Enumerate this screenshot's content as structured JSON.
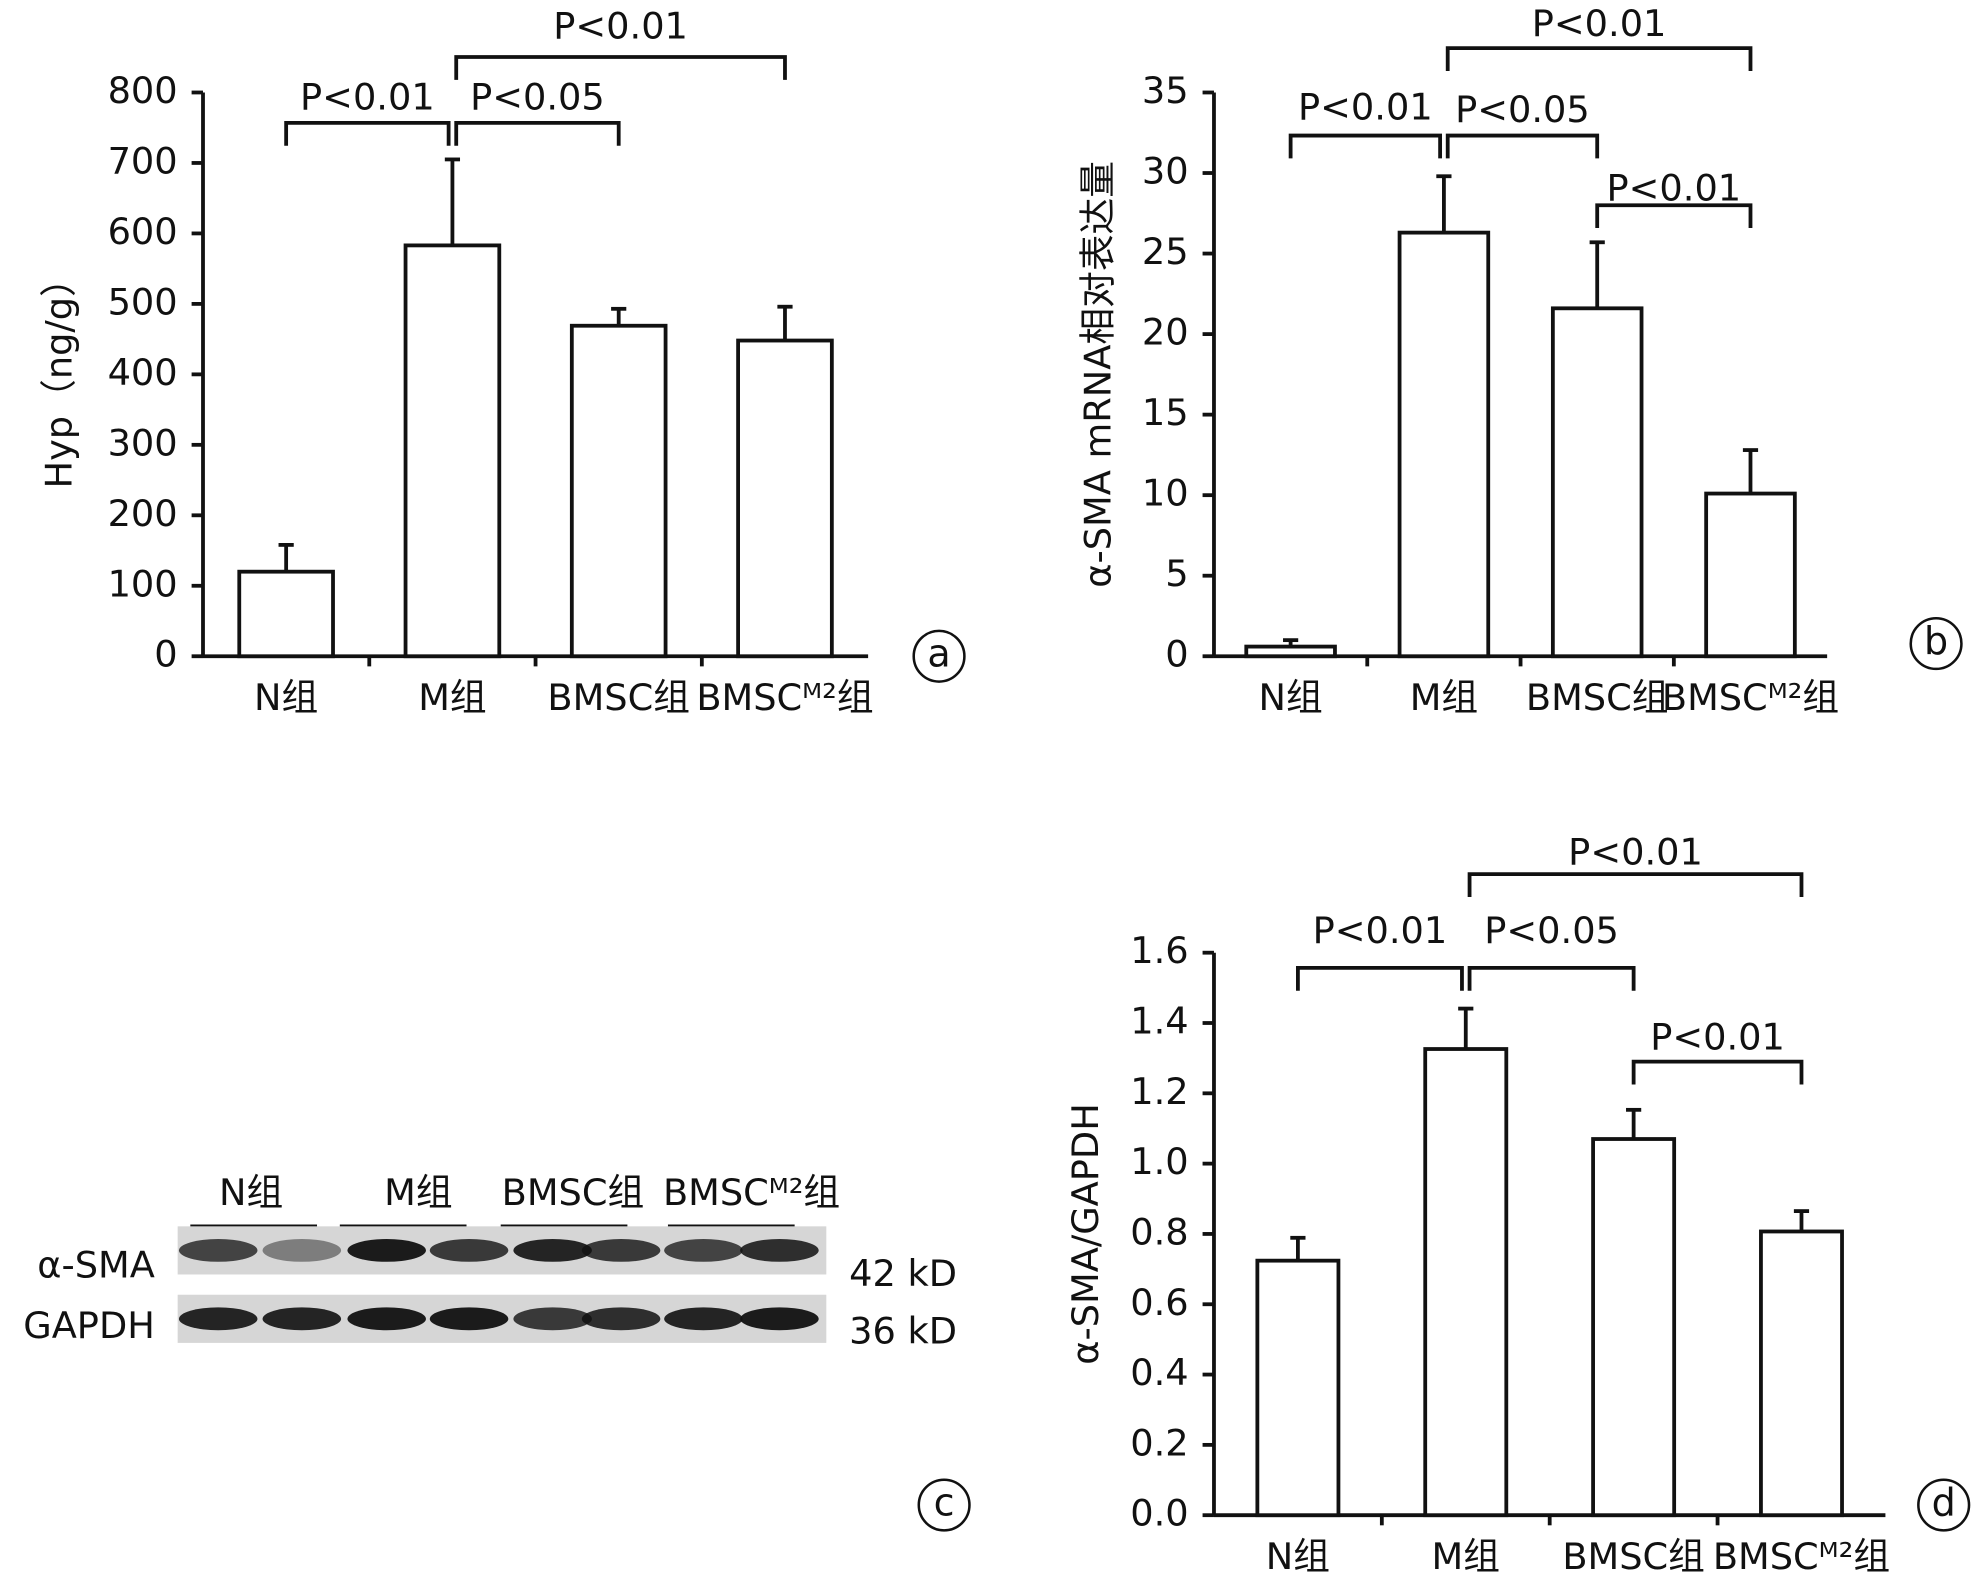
{
  "chart_data": [
    {
      "type": "bar",
      "panel": "a",
      "ylabel": "Hyp（ng/g）",
      "categories": [
        "N组",
        "M组",
        "BMSC组",
        "BMSCᴹ²组"
      ],
      "values": [
        120,
        583,
        469,
        448
      ],
      "errors": [
        38,
        122,
        24,
        48
      ],
      "ylim": [
        0,
        800
      ],
      "yticks": [
        0,
        100,
        200,
        300,
        400,
        500,
        600,
        700,
        800
      ],
      "comparisons": [
        "P<0.01",
        "P<0.05",
        "P<0.01"
      ]
    },
    {
      "type": "bar",
      "panel": "b",
      "ylabel": "α-SMA mRNA相对表达量",
      "categories": [
        "N组",
        "M组",
        "BMSC组",
        "BMSCᴹ²组"
      ],
      "values": [
        0.6,
        26.3,
        21.6,
        10.1
      ],
      "errors": [
        0.4,
        3.5,
        4.1,
        2.7
      ],
      "ylim": [
        0,
        35
      ],
      "yticks": [
        0,
        5,
        10,
        15,
        20,
        25,
        30,
        35
      ],
      "comparisons": [
        "P<0.01",
        "P<0.05",
        "P<0.01",
        "P<0.01"
      ]
    },
    {
      "type": "blot",
      "panel": "c",
      "lanes": [
        "N组",
        "M组",
        "BMSC组",
        "BMSCᴹ²组"
      ],
      "rows": [
        "α-SMA",
        "GAPDH"
      ],
      "sizes": [
        "42 kD",
        "36 kD"
      ]
    },
    {
      "type": "bar",
      "panel": "d",
      "ylabel": "α-SMA/GAPDH",
      "categories": [
        "N组",
        "M组",
        "BMSC组",
        "BMSCᴹ²组"
      ],
      "values": [
        0.724,
        1.326,
        1.07,
        0.807
      ],
      "errors": [
        0.065,
        0.115,
        0.083,
        0.058
      ],
      "ylim": [
        0,
        1.6
      ],
      "yticks": [
        {
          "value": 0,
          "label": "0.0"
        },
        0.2,
        0.4,
        0.6,
        0.8,
        {
          "value": 1,
          "label": "1.0"
        },
        1.2,
        1.4,
        1.6
      ],
      "comparisons": [
        "P<0.01",
        "P<0.05",
        "P<0.01",
        "P<0.01"
      ]
    }
  ]
}
